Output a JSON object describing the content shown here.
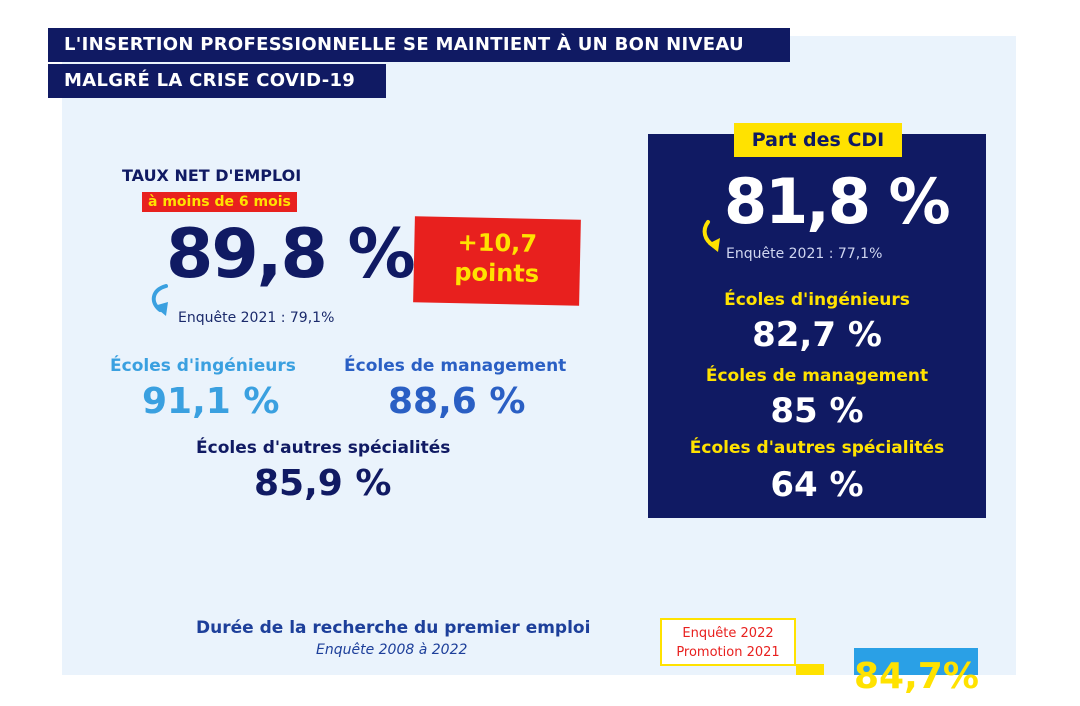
{
  "banner": {
    "line1": "L'INSERTION PROFESSIONNELLE SE MAINTIENT À UN BON NIVEAU",
    "line2": "MALGRÉ LA CRISE COVID-19"
  },
  "emploi": {
    "title": "TAUX NET D'EMPLOI",
    "subtitle": "à moins de 6 mois",
    "value": "89,8 %",
    "delta_line1": "+10,7",
    "delta_line2": "points",
    "previous": "Enquête 2021 : 79,1%",
    "ingenieurs_label": "Écoles d'ingénieurs",
    "ingenieurs_value": "91,1 %",
    "management_label": "Écoles de management",
    "management_value": "88,6 %",
    "autres_label": "Écoles d'autres spécialités",
    "autres_value": "85,9 %"
  },
  "cdi": {
    "tag": "Part des CDI",
    "value": "81,8 %",
    "previous": "Enquête 2021 : 77,1%",
    "ingenieurs_label": "Écoles d'ingénieurs",
    "ingenieurs_value": "82,7 %",
    "management_label": "Écoles de management",
    "management_value": "85 %",
    "autres_label": "Écoles d'autres spécialités",
    "autres_value": "64 %"
  },
  "recherche": {
    "title": "Durée de la recherche du premier emploi",
    "subtitle": "Enquête 2008 à 2022",
    "promo_line1": "Enquête 2022",
    "promo_line2": "Promotion 2021",
    "partial_value": "84,7%"
  },
  "colors": {
    "navy": "#101a63",
    "yellow": "#ffe200",
    "red": "#e8201e",
    "light_blue": "#3aa0e0",
    "panel_bg": "#eaf3fc"
  }
}
